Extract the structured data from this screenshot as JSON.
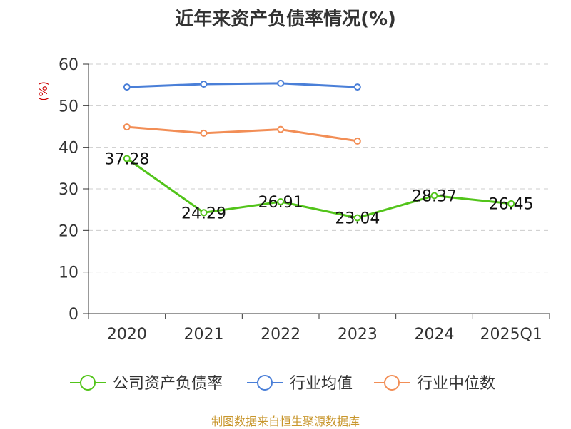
{
  "chart_data": {
    "type": "line",
    "title": "近年来资产负债率情况(%)",
    "ylabel": "(%)",
    "xlabel": "",
    "categories": [
      "2020",
      "2021",
      "2022",
      "2023",
      "2024",
      "2025Q1"
    ],
    "ylim": [
      0,
      60
    ],
    "yticks": [
      0,
      10,
      20,
      30,
      40,
      50,
      60
    ],
    "grid": true,
    "legend_position": "bottom",
    "series": [
      {
        "name": "公司资产负债率",
        "color": "#52c41a",
        "values": [
          37.28,
          24.29,
          26.91,
          23.04,
          28.37,
          26.45
        ],
        "show_labels": true
      },
      {
        "name": "行业均值",
        "color": "#4a7fd8",
        "values": [
          54.5,
          55.2,
          55.4,
          54.5,
          null,
          null
        ],
        "show_labels": false
      },
      {
        "name": "行业中位数",
        "color": "#f28e56",
        "values": [
          44.9,
          43.4,
          44.3,
          41.5,
          null,
          null
        ],
        "show_labels": false
      }
    ]
  },
  "source": "制图数据来自恒生聚源数据库"
}
